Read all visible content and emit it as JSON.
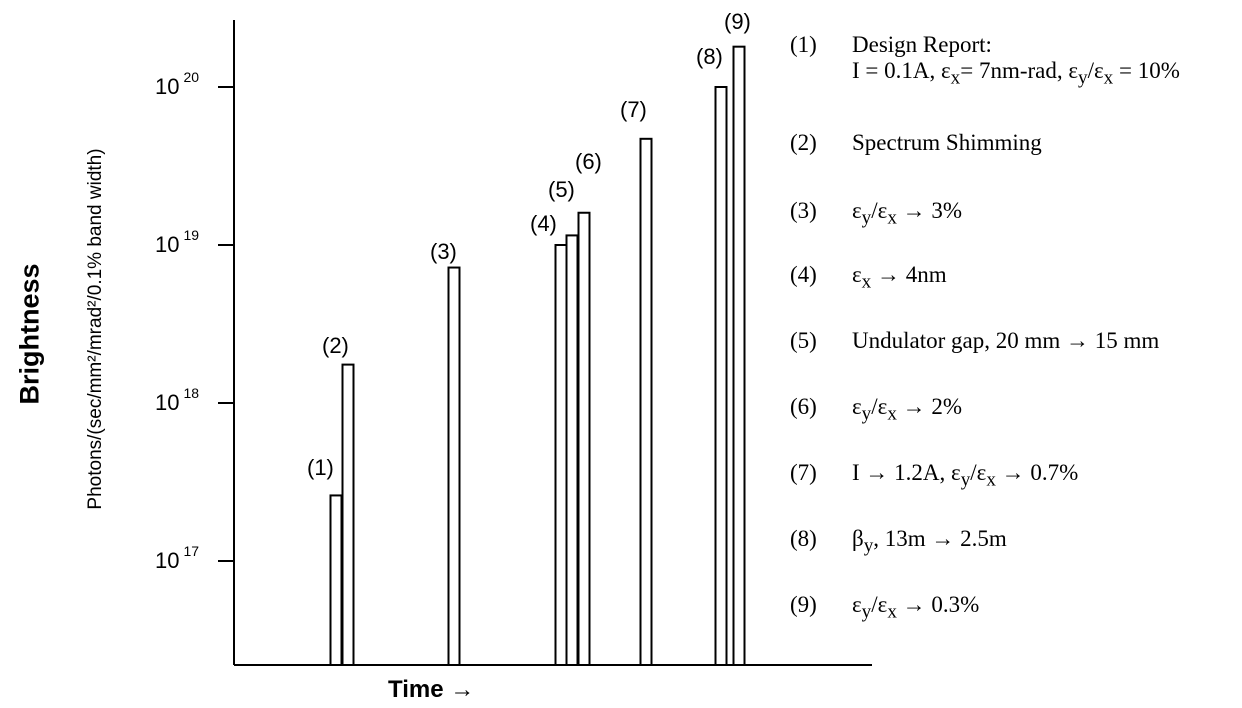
{
  "chart_data": {
    "type": "bar",
    "title": "",
    "ylabel": "Brightness",
    "ylabel_units": "Photons/(sec/mm²/mrad²/0.1% band width)",
    "xlabel": "Time →",
    "yscale": "log",
    "ylim": [
      3e+16,
      2.5e+20
    ],
    "yticks": [
      {
        "value": 1e+17,
        "base": "10",
        "exp": "17"
      },
      {
        "value": 1e+18,
        "base": "10",
        "exp": "18"
      },
      {
        "value": 1e+19,
        "base": "10",
        "exp": "19"
      },
      {
        "value": 1e+20,
        "base": "10",
        "exp": "20"
      }
    ],
    "grid": false,
    "bars": [
      {
        "label": "(1)",
        "value": 2.6e+17
      },
      {
        "label": "(2)",
        "value": 1.75e+18
      },
      {
        "label": "(3)",
        "value": 7.2e+18
      },
      {
        "label": "(4)",
        "value": 1e+19
      },
      {
        "label": "(5)",
        "value": 1.15e+19
      },
      {
        "label": "(6)",
        "value": 1.6e+19
      },
      {
        "label": "(7)",
        "value": 4.7e+19
      },
      {
        "label": "(8)",
        "value": 1e+20
      },
      {
        "label": "(9)",
        "value": 1.8e+20
      }
    ]
  },
  "legend": [
    {
      "num": "(1)",
      "html": "Design Report:<br>I = 0.1A, ε<sub>x</sub>= 7nm-rad, ε<sub>y</sub>/ε<sub>x</sub> = 10%"
    },
    {
      "num": "(2)",
      "html": "Spectrum Shimming"
    },
    {
      "num": "(3)",
      "html": "ε<sub>y</sub>/ε<sub>x</sub> → 3%"
    },
    {
      "num": "(4)",
      "html": "ε<sub>x</sub> → 4nm"
    },
    {
      "num": "(5)",
      "html": "Undulator gap, 20 mm → 15 mm"
    },
    {
      "num": "(6)",
      "html": "ε<sub>y</sub>/ε<sub>x</sub> → 2%"
    },
    {
      "num": "(7)",
      "html": "I → 1.2A, ε<sub>y</sub>/ε<sub>x</sub> → 0.7%"
    },
    {
      "num": "(8)",
      "html": "β<sub>y</sub>, 13m → 2.5m"
    },
    {
      "num": "(9)",
      "html": "ε<sub>y</sub>/ε<sub>x</sub> → 0.3%"
    }
  ]
}
